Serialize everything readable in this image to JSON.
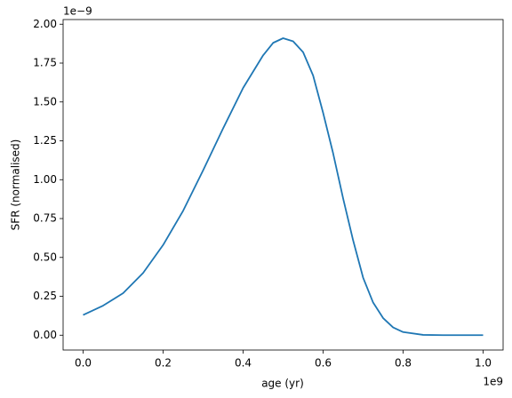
{
  "chart_data": {
    "type": "line",
    "x_label": "age (yr)",
    "y_label": "SFR (normalised)",
    "x_offset_label": "1e9",
    "y_offset_label": "1e−9",
    "x": [
      0.0,
      0.05,
      0.1,
      0.15,
      0.2,
      0.25,
      0.3,
      0.35,
      0.4,
      0.45,
      0.475,
      0.5,
      0.525,
      0.55,
      0.575,
      0.6,
      0.625,
      0.65,
      0.675,
      0.7,
      0.725,
      0.75,
      0.775,
      0.8,
      0.85,
      0.9,
      0.95,
      1.0
    ],
    "series": [
      {
        "color": "#1f77b4",
        "values": [
          0.13,
          0.19,
          0.27,
          0.4,
          0.58,
          0.8,
          1.06,
          1.33,
          1.59,
          1.8,
          1.88,
          1.91,
          1.89,
          1.82,
          1.67,
          1.43,
          1.17,
          0.88,
          0.61,
          0.37,
          0.21,
          0.11,
          0.05,
          0.02,
          0.002,
          0,
          0,
          0
        ]
      }
    ],
    "xlim": [
      -0.05,
      1.05
    ],
    "ylim": [
      -0.0955,
      2.03
    ],
    "xticks": [
      {
        "value": 0,
        "label": "0.0"
      },
      {
        "value": 0.2,
        "label": "0.2"
      },
      {
        "value": 0.4,
        "label": "0.4"
      },
      {
        "value": 0.6,
        "label": "0.6"
      },
      {
        "value": 0.8,
        "label": "0.8"
      },
      {
        "value": 1,
        "label": "1.0"
      }
    ],
    "yticks": [
      {
        "value": 0,
        "label": "0.00"
      },
      {
        "value": 0.25,
        "label": "0.25"
      },
      {
        "value": 0.5,
        "label": "0.50"
      },
      {
        "value": 0.75,
        "label": "0.75"
      },
      {
        "value": 1,
        "label": "1.00"
      },
      {
        "value": 1.25,
        "label": "1.25"
      },
      {
        "value": 1.5,
        "label": "1.50"
      },
      {
        "value": 1.75,
        "label": "1.75"
      },
      {
        "value": 2,
        "label": "2.00"
      }
    ],
    "grid": false
  }
}
